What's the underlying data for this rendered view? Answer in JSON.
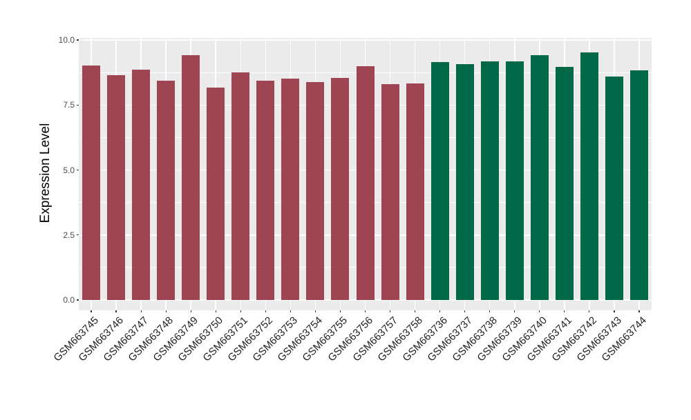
{
  "chart_data": {
    "type": "bar",
    "title": "",
    "xlabel": "",
    "ylabel": "Expression Level",
    "ylim": [
      0,
      10.1
    ],
    "legend": "none",
    "grid": {
      "panel_bg": "#EBEBEB",
      "major_color": "#FFFFFF",
      "minor_color": "#FFFFFF"
    },
    "yticks": [
      {
        "value": 0,
        "label": "0.0"
      },
      {
        "value": 2.5,
        "label": "2.5"
      },
      {
        "value": 5,
        "label": "5.0"
      },
      {
        "value": 7.5,
        "label": "7.5"
      },
      {
        "value": 10,
        "label": "10.0"
      }
    ],
    "yticks_minor": [
      1.25,
      3.75,
      6.25,
      8.75
    ],
    "group_colors": {
      "maroon": "#9E4452",
      "green": "#006747"
    },
    "bars": [
      {
        "label": "GSM663745",
        "value": 9.01,
        "group": "maroon"
      },
      {
        "label": "GSM663746",
        "value": 8.66,
        "group": "maroon"
      },
      {
        "label": "GSM663747",
        "value": 8.85,
        "group": "maroon"
      },
      {
        "label": "GSM663748",
        "value": 8.44,
        "group": "maroon"
      },
      {
        "label": "GSM663749",
        "value": 9.42,
        "group": "maroon"
      },
      {
        "label": "GSM663750",
        "value": 8.16,
        "group": "maroon"
      },
      {
        "label": "GSM663751",
        "value": 8.75,
        "group": "maroon"
      },
      {
        "label": "GSM663752",
        "value": 8.44,
        "group": "maroon"
      },
      {
        "label": "GSM663753",
        "value": 8.51,
        "group": "maroon"
      },
      {
        "label": "GSM663754",
        "value": 8.37,
        "group": "maroon"
      },
      {
        "label": "GSM663755",
        "value": 8.55,
        "group": "maroon"
      },
      {
        "label": "GSM663756",
        "value": 8.99,
        "group": "maroon"
      },
      {
        "label": "GSM663757",
        "value": 8.29,
        "group": "maroon"
      },
      {
        "label": "GSM663758",
        "value": 8.34,
        "group": "maroon"
      },
      {
        "label": "GSM663736",
        "value": 9.15,
        "group": "green"
      },
      {
        "label": "GSM663737",
        "value": 9.06,
        "group": "green"
      },
      {
        "label": "GSM663738",
        "value": 9.19,
        "group": "green"
      },
      {
        "label": "GSM663739",
        "value": 9.19,
        "group": "green"
      },
      {
        "label": "GSM663740",
        "value": 9.42,
        "group": "green"
      },
      {
        "label": "GSM663741",
        "value": 8.97,
        "group": "green"
      },
      {
        "label": "GSM663742",
        "value": 9.52,
        "group": "green"
      },
      {
        "label": "GSM663743",
        "value": 8.6,
        "group": "green"
      },
      {
        "label": "GSM663744",
        "value": 8.82,
        "group": "green"
      }
    ]
  }
}
